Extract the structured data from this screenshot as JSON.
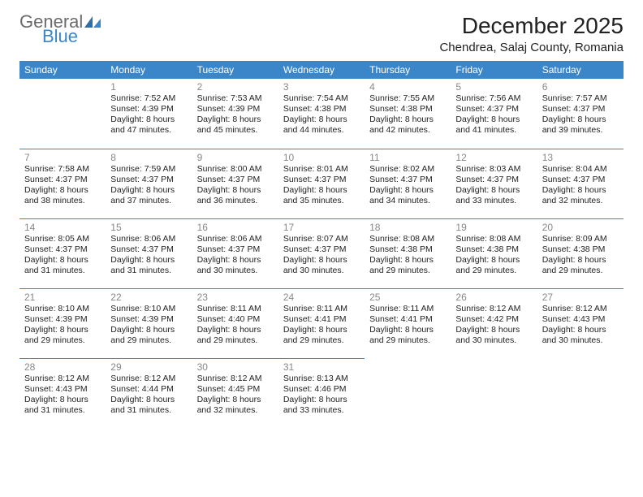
{
  "logo": {
    "word1": "General",
    "word2": "Blue",
    "accent_color": "#3a86c8",
    "grey_color": "#6b6b6b"
  },
  "title": "December 2025",
  "location": "Chendrea, Salaj County, Romania",
  "header_bg": "#3a86c8",
  "header_fg": "#ffffff",
  "rule_color": "#3a86c8",
  "daynum_color": "#888888",
  "dayHeaders": [
    "Sunday",
    "Monday",
    "Tuesday",
    "Wednesday",
    "Thursday",
    "Friday",
    "Saturday"
  ],
  "weeks": [
    [
      null,
      {
        "n": "1",
        "sr": "Sunrise: 7:52 AM",
        "ss": "Sunset: 4:39 PM",
        "d1": "Daylight: 8 hours",
        "d2": "and 47 minutes."
      },
      {
        "n": "2",
        "sr": "Sunrise: 7:53 AM",
        "ss": "Sunset: 4:39 PM",
        "d1": "Daylight: 8 hours",
        "d2": "and 45 minutes."
      },
      {
        "n": "3",
        "sr": "Sunrise: 7:54 AM",
        "ss": "Sunset: 4:38 PM",
        "d1": "Daylight: 8 hours",
        "d2": "and 44 minutes."
      },
      {
        "n": "4",
        "sr": "Sunrise: 7:55 AM",
        "ss": "Sunset: 4:38 PM",
        "d1": "Daylight: 8 hours",
        "d2": "and 42 minutes."
      },
      {
        "n": "5",
        "sr": "Sunrise: 7:56 AM",
        "ss": "Sunset: 4:37 PM",
        "d1": "Daylight: 8 hours",
        "d2": "and 41 minutes."
      },
      {
        "n": "6",
        "sr": "Sunrise: 7:57 AM",
        "ss": "Sunset: 4:37 PM",
        "d1": "Daylight: 8 hours",
        "d2": "and 39 minutes."
      }
    ],
    [
      {
        "n": "7",
        "sr": "Sunrise: 7:58 AM",
        "ss": "Sunset: 4:37 PM",
        "d1": "Daylight: 8 hours",
        "d2": "and 38 minutes."
      },
      {
        "n": "8",
        "sr": "Sunrise: 7:59 AM",
        "ss": "Sunset: 4:37 PM",
        "d1": "Daylight: 8 hours",
        "d2": "and 37 minutes."
      },
      {
        "n": "9",
        "sr": "Sunrise: 8:00 AM",
        "ss": "Sunset: 4:37 PM",
        "d1": "Daylight: 8 hours",
        "d2": "and 36 minutes."
      },
      {
        "n": "10",
        "sr": "Sunrise: 8:01 AM",
        "ss": "Sunset: 4:37 PM",
        "d1": "Daylight: 8 hours",
        "d2": "and 35 minutes."
      },
      {
        "n": "11",
        "sr": "Sunrise: 8:02 AM",
        "ss": "Sunset: 4:37 PM",
        "d1": "Daylight: 8 hours",
        "d2": "and 34 minutes."
      },
      {
        "n": "12",
        "sr": "Sunrise: 8:03 AM",
        "ss": "Sunset: 4:37 PM",
        "d1": "Daylight: 8 hours",
        "d2": "and 33 minutes."
      },
      {
        "n": "13",
        "sr": "Sunrise: 8:04 AM",
        "ss": "Sunset: 4:37 PM",
        "d1": "Daylight: 8 hours",
        "d2": "and 32 minutes."
      }
    ],
    [
      {
        "n": "14",
        "sr": "Sunrise: 8:05 AM",
        "ss": "Sunset: 4:37 PM",
        "d1": "Daylight: 8 hours",
        "d2": "and 31 minutes."
      },
      {
        "n": "15",
        "sr": "Sunrise: 8:06 AM",
        "ss": "Sunset: 4:37 PM",
        "d1": "Daylight: 8 hours",
        "d2": "and 31 minutes."
      },
      {
        "n": "16",
        "sr": "Sunrise: 8:06 AM",
        "ss": "Sunset: 4:37 PM",
        "d1": "Daylight: 8 hours",
        "d2": "and 30 minutes."
      },
      {
        "n": "17",
        "sr": "Sunrise: 8:07 AM",
        "ss": "Sunset: 4:37 PM",
        "d1": "Daylight: 8 hours",
        "d2": "and 30 minutes."
      },
      {
        "n": "18",
        "sr": "Sunrise: 8:08 AM",
        "ss": "Sunset: 4:38 PM",
        "d1": "Daylight: 8 hours",
        "d2": "and 29 minutes."
      },
      {
        "n": "19",
        "sr": "Sunrise: 8:08 AM",
        "ss": "Sunset: 4:38 PM",
        "d1": "Daylight: 8 hours",
        "d2": "and 29 minutes."
      },
      {
        "n": "20",
        "sr": "Sunrise: 8:09 AM",
        "ss": "Sunset: 4:38 PM",
        "d1": "Daylight: 8 hours",
        "d2": "and 29 minutes."
      }
    ],
    [
      {
        "n": "21",
        "sr": "Sunrise: 8:10 AM",
        "ss": "Sunset: 4:39 PM",
        "d1": "Daylight: 8 hours",
        "d2": "and 29 minutes."
      },
      {
        "n": "22",
        "sr": "Sunrise: 8:10 AM",
        "ss": "Sunset: 4:39 PM",
        "d1": "Daylight: 8 hours",
        "d2": "and 29 minutes."
      },
      {
        "n": "23",
        "sr": "Sunrise: 8:11 AM",
        "ss": "Sunset: 4:40 PM",
        "d1": "Daylight: 8 hours",
        "d2": "and 29 minutes."
      },
      {
        "n": "24",
        "sr": "Sunrise: 8:11 AM",
        "ss": "Sunset: 4:41 PM",
        "d1": "Daylight: 8 hours",
        "d2": "and 29 minutes."
      },
      {
        "n": "25",
        "sr": "Sunrise: 8:11 AM",
        "ss": "Sunset: 4:41 PM",
        "d1": "Daylight: 8 hours",
        "d2": "and 29 minutes."
      },
      {
        "n": "26",
        "sr": "Sunrise: 8:12 AM",
        "ss": "Sunset: 4:42 PM",
        "d1": "Daylight: 8 hours",
        "d2": "and 30 minutes."
      },
      {
        "n": "27",
        "sr": "Sunrise: 8:12 AM",
        "ss": "Sunset: 4:43 PM",
        "d1": "Daylight: 8 hours",
        "d2": "and 30 minutes."
      }
    ],
    [
      {
        "n": "28",
        "sr": "Sunrise: 8:12 AM",
        "ss": "Sunset: 4:43 PM",
        "d1": "Daylight: 8 hours",
        "d2": "and 31 minutes."
      },
      {
        "n": "29",
        "sr": "Sunrise: 8:12 AM",
        "ss": "Sunset: 4:44 PM",
        "d1": "Daylight: 8 hours",
        "d2": "and 31 minutes."
      },
      {
        "n": "30",
        "sr": "Sunrise: 8:12 AM",
        "ss": "Sunset: 4:45 PM",
        "d1": "Daylight: 8 hours",
        "d2": "and 32 minutes."
      },
      {
        "n": "31",
        "sr": "Sunrise: 8:13 AM",
        "ss": "Sunset: 4:46 PM",
        "d1": "Daylight: 8 hours",
        "d2": "and 33 minutes."
      },
      null,
      null,
      null
    ]
  ]
}
